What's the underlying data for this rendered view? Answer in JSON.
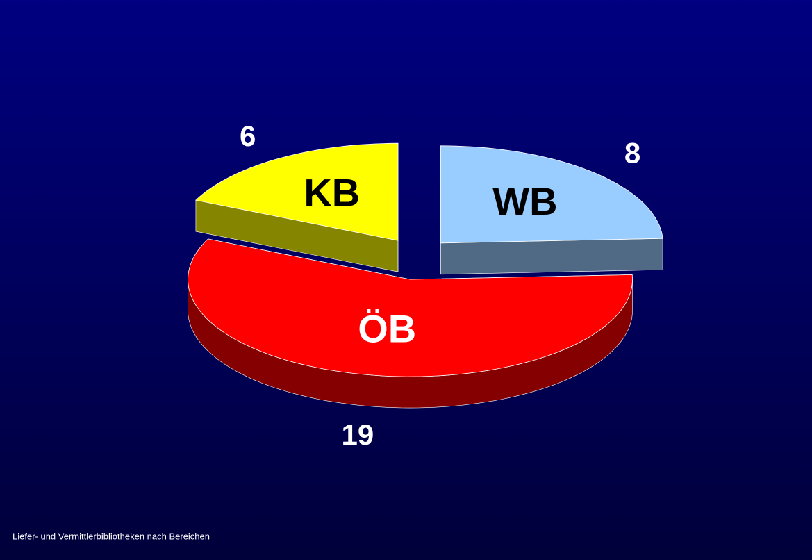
{
  "chart_data": {
    "type": "pie",
    "title": "Liefer- und Vermittlerbibliotheken nach Bereichen",
    "categories": [
      "WB",
      "ÖB",
      "KB"
    ],
    "values": [
      8,
      19,
      6
    ],
    "colors": [
      "#99ccff",
      "#ff0000",
      "#ffff00"
    ]
  }
}
